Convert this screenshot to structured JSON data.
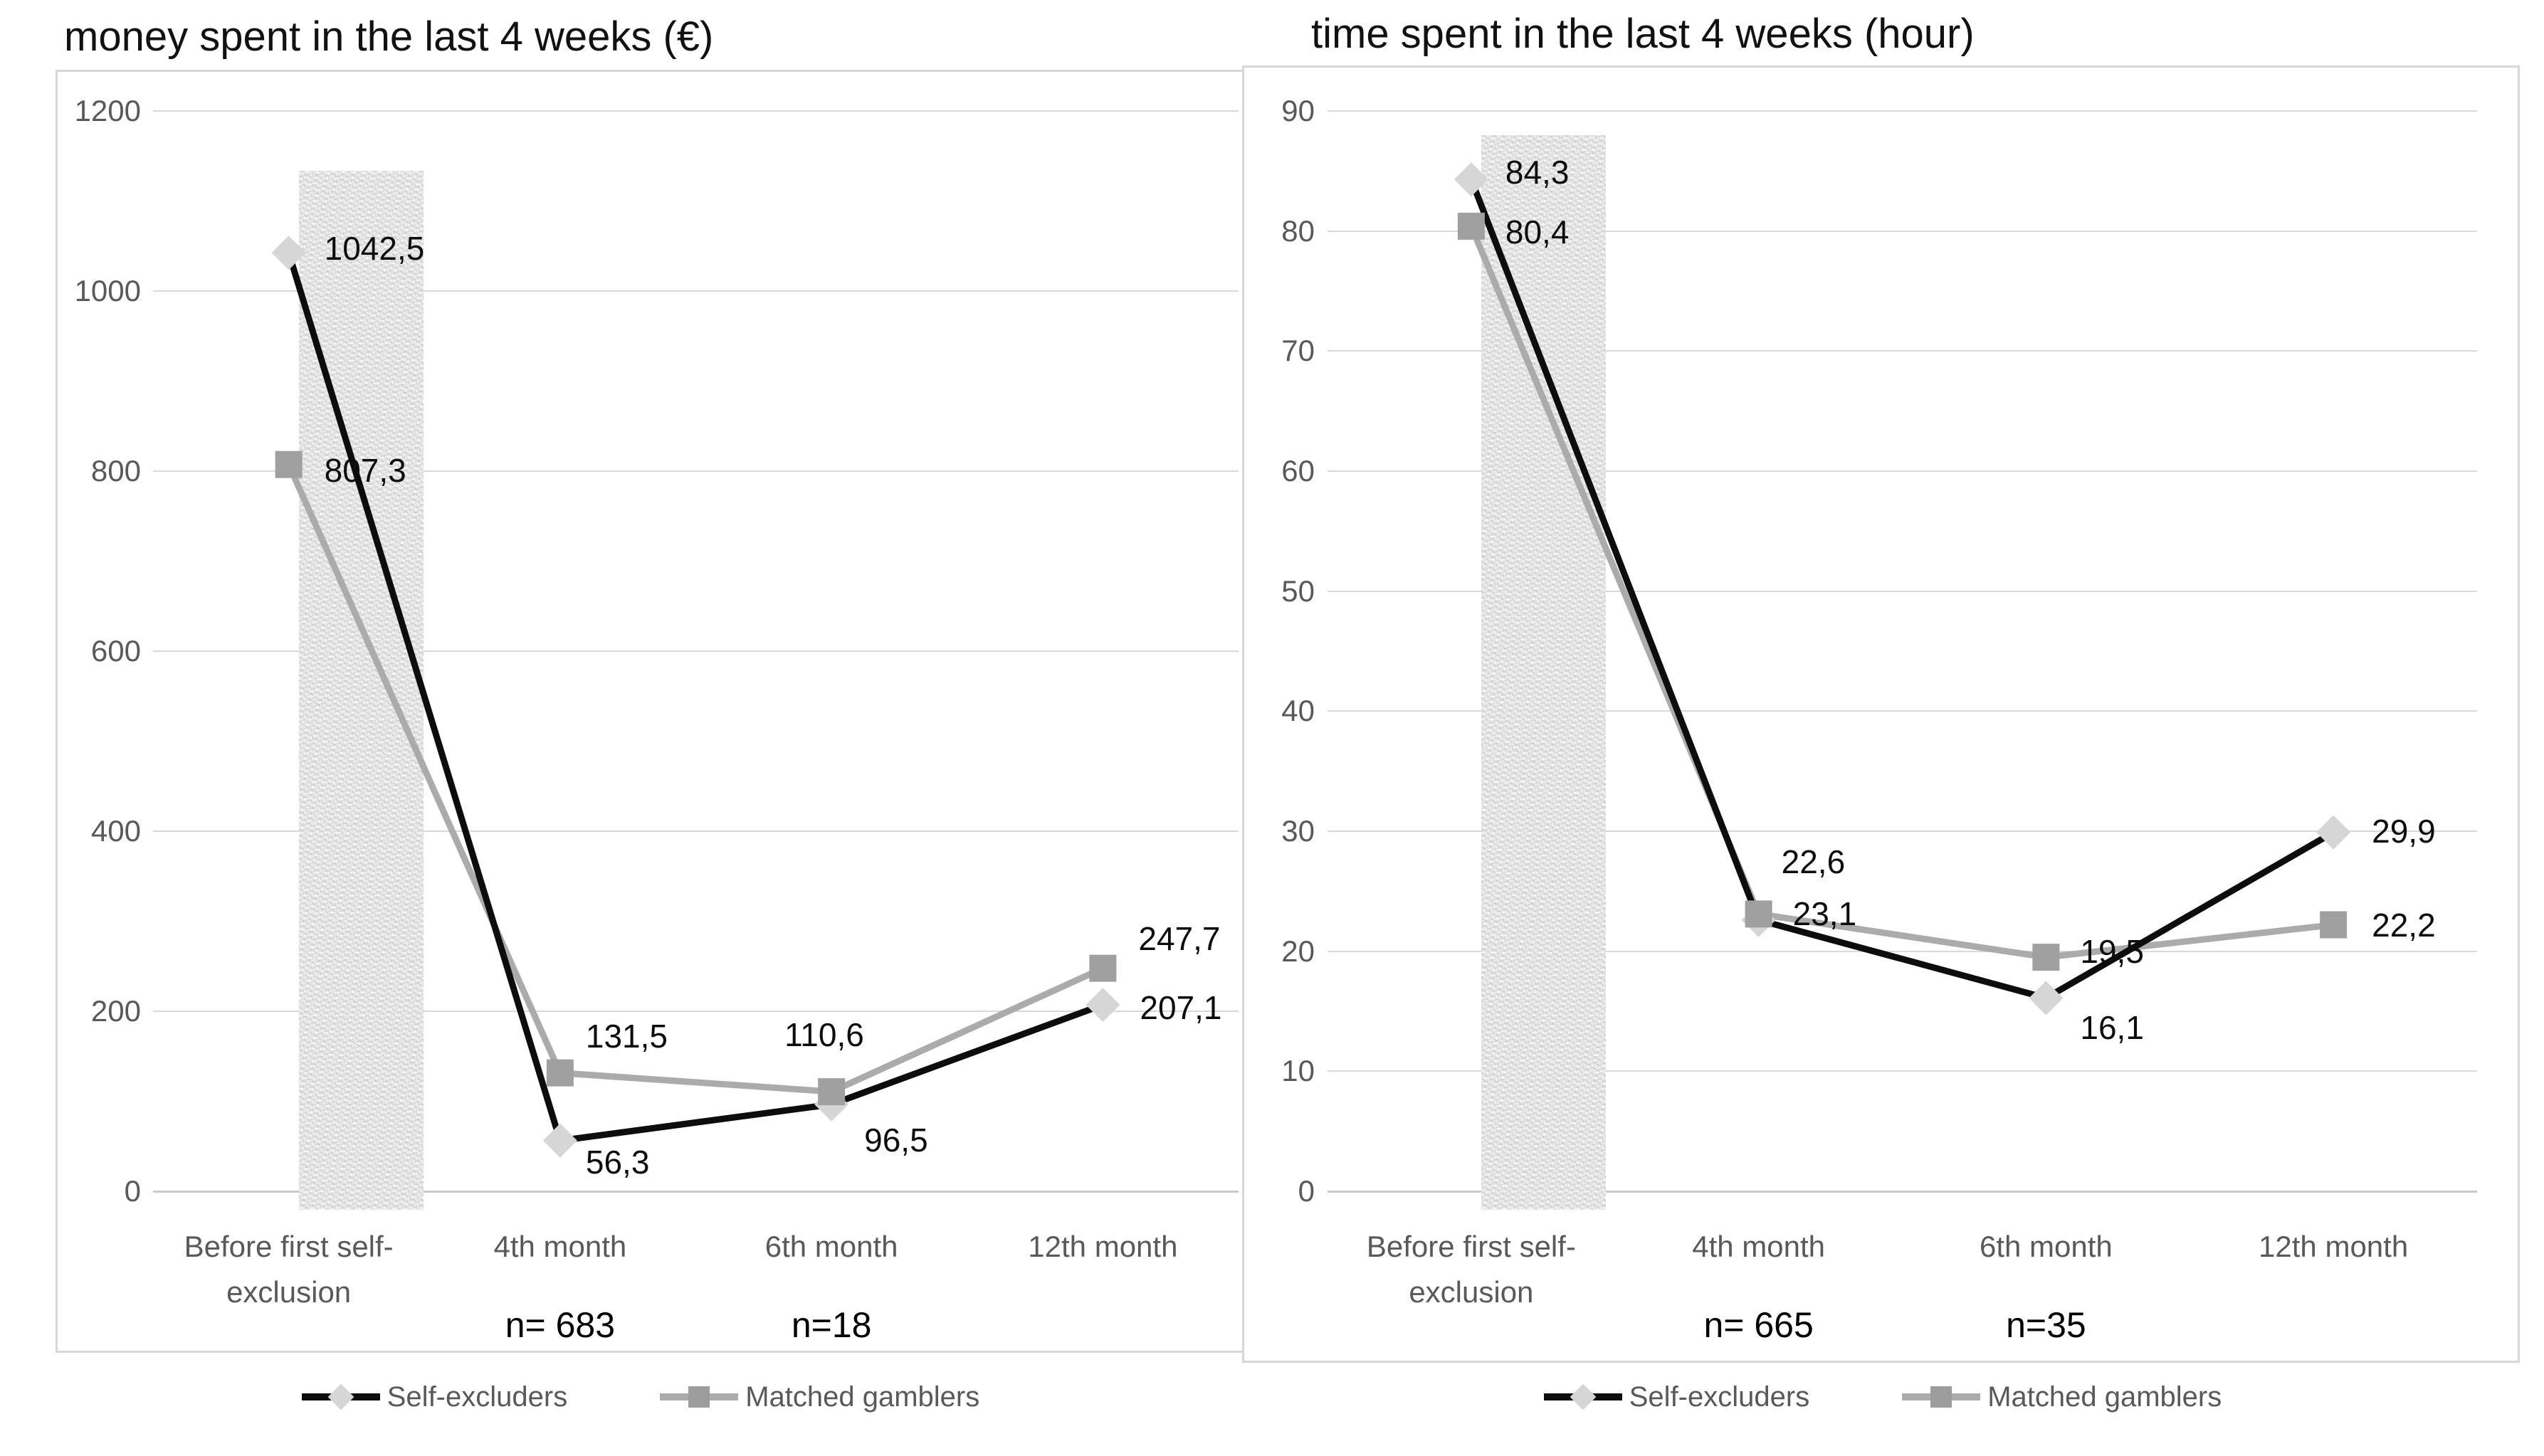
{
  "colors": {
    "self_excluders_line": "#0d0d0d",
    "self_excluders_marker": "#d6d6d6",
    "matched_gamblers_line": "#ababab",
    "matched_gamblers_marker": "#a0a0a0",
    "gridline": "#d9d9d9",
    "axis_text": "#595959",
    "highlight_band": "#ececec"
  },
  "chart_data": [
    {
      "type": "line",
      "title": "money spent in the last 4 weeks (€)",
      "categories": [
        "Before first self-exclusion",
        "4th month",
        "6th month",
        "12th month"
      ],
      "category_label_lines": [
        [
          "Before first self-",
          "exclusion"
        ],
        [
          "4th month"
        ],
        [
          "6th month"
        ],
        [
          "12th month"
        ]
      ],
      "y_axis": {
        "min": 0,
        "max": 1200,
        "step": 200
      },
      "grid": true,
      "legend_position": "bottom",
      "highlight_band": {
        "category_index": 0
      },
      "series": [
        {
          "name": "Self-excluders",
          "marker": "diamond",
          "values": [
            1042.5,
            56.3,
            96.5,
            207.1
          ],
          "point_labels": [
            "1042,5",
            "56,3",
            "96,5",
            "207,1"
          ]
        },
        {
          "name": "Matched gamblers",
          "marker": "square",
          "values": [
            807.3,
            131.5,
            110.6,
            247.7
          ],
          "point_labels": [
            "807,3",
            "131,5",
            "110,6",
            "247,7"
          ]
        }
      ],
      "annotations": [
        {
          "text": "n= 683",
          "category_index": 1
        },
        {
          "text": "n=18",
          "category_index": 2
        }
      ]
    },
    {
      "type": "line",
      "title": "time spent in the last 4 weeks (hour)",
      "categories": [
        "Before first self-exclusion",
        "4th month",
        "6th month",
        "12th month"
      ],
      "category_label_lines": [
        [
          "Before first self-",
          "exclusion"
        ],
        [
          "4th month"
        ],
        [
          "6th month"
        ],
        [
          "12th month"
        ]
      ],
      "y_axis": {
        "min": 0,
        "max": 90,
        "step": 10
      },
      "grid": true,
      "legend_position": "bottom",
      "highlight_band": {
        "category_index": 0
      },
      "series": [
        {
          "name": "Self-excluders",
          "marker": "diamond",
          "values": [
            84.3,
            22.6,
            16.1,
            29.9
          ],
          "point_labels": [
            "84,3",
            "22,6",
            "16,1",
            "29,9"
          ]
        },
        {
          "name": "Matched gamblers",
          "marker": "square",
          "values": [
            80.4,
            23.1,
            19.5,
            22.2
          ],
          "point_labels": [
            "80,4",
            "23,1",
            "19,5",
            "22,2"
          ]
        }
      ],
      "annotations": [
        {
          "text": "n= 665",
          "category_index": 1
        },
        {
          "text": "n=35",
          "category_index": 2
        }
      ]
    }
  ]
}
